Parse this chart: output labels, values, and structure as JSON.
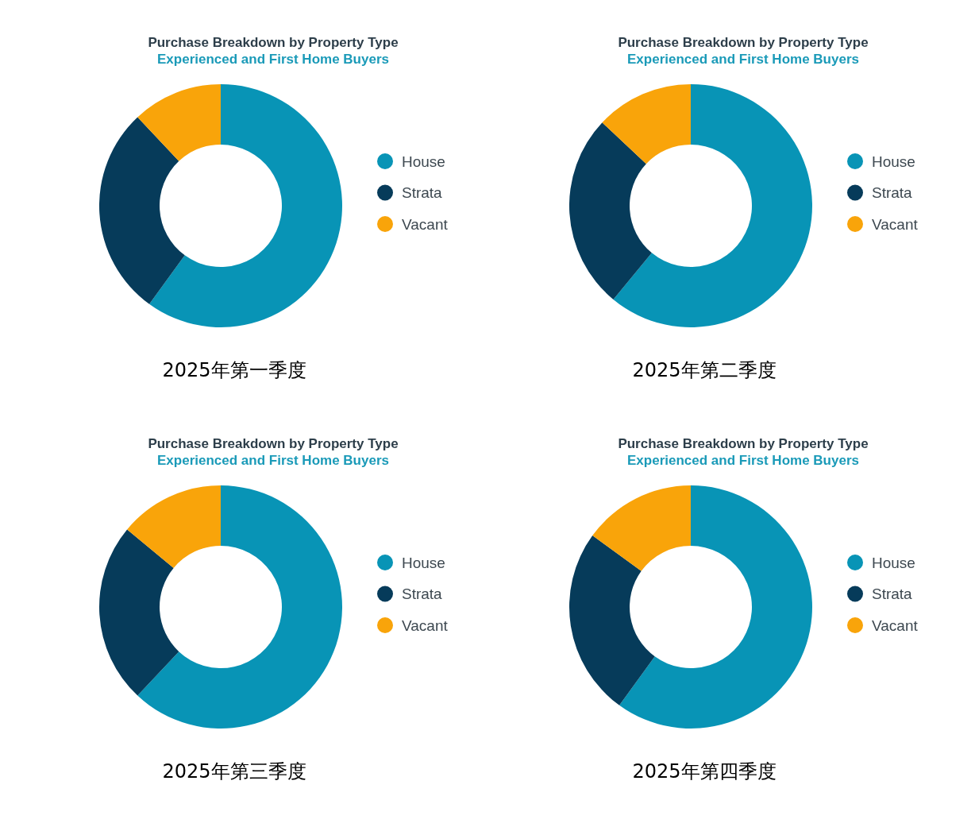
{
  "chart_data": [
    {
      "type": "donut",
      "title": "Purchase Breakdown by Property Type",
      "subtitle": "Experienced and First Home Buyers",
      "categories": [
        "House",
        "Strata",
        "Vacant"
      ],
      "values": [
        60,
        28,
        12
      ],
      "colors": [
        "#0894b6",
        "#063b5a",
        "#f9a40a"
      ],
      "legend": "right",
      "annotations": [
        "2025年第一季度"
      ]
    },
    {
      "type": "donut",
      "title": "Purchase Breakdown by Property Type",
      "subtitle": "Experienced and First Home Buyers",
      "categories": [
        "House",
        "Strata",
        "Vacant"
      ],
      "values": [
        61,
        26,
        13
      ],
      "colors": [
        "#0894b6",
        "#063b5a",
        "#f9a40a"
      ],
      "legend": "right",
      "annotations": [
        "2025年第二季度"
      ]
    },
    {
      "type": "donut",
      "title": "Purchase Breakdown by Property Type",
      "subtitle": "Experienced and First Home Buyers",
      "categories": [
        "House",
        "Strata",
        "Vacant"
      ],
      "values": [
        62,
        24,
        14
      ],
      "colors": [
        "#0894b6",
        "#063b5a",
        "#f9a40a"
      ],
      "legend": "right",
      "annotations": [
        "2025年第三季度"
      ]
    },
    {
      "type": "donut",
      "title": "Purchase Breakdown by Property Type",
      "subtitle": "Experienced and First Home Buyers",
      "categories": [
        "House",
        "Strata",
        "Vacant"
      ],
      "values": [
        60,
        25,
        15
      ],
      "colors": [
        "#0894b6",
        "#063b5a",
        "#f9a40a"
      ],
      "legend": "right",
      "annotations": [
        "2025年第四季度"
      ]
    }
  ]
}
